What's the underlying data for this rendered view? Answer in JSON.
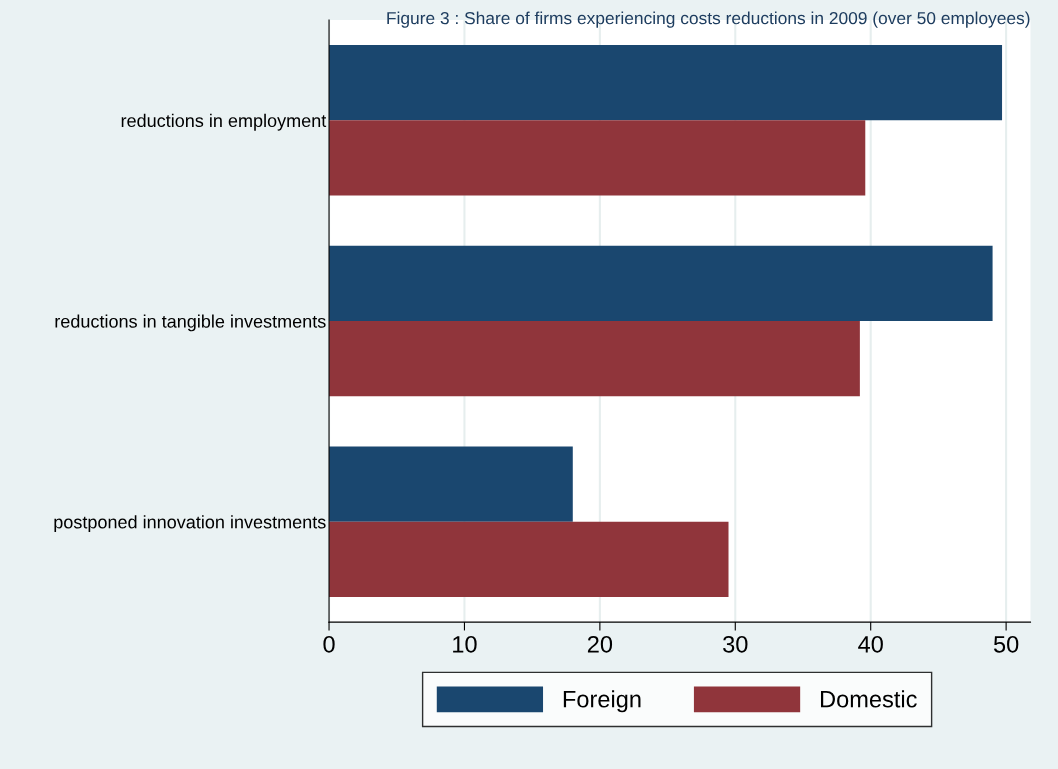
{
  "chart_data": {
    "type": "bar",
    "orientation": "horizontal",
    "title": "Figure 3 : Share of firms experiencing costs reductions in 2009 (over 50 employees)",
    "categories": [
      "reductions in employment",
      "reductions in tangible investments",
      "postponed innovation investments"
    ],
    "series": [
      {
        "name": "Foreign",
        "color": "#1a476f",
        "values": [
          49.7,
          49.0,
          18.0
        ]
      },
      {
        "name": "Domestic",
        "color": "#90353b",
        "values": [
          39.6,
          39.2,
          29.5
        ]
      }
    ],
    "xlim": [
      0,
      51.8
    ],
    "xticks": [
      0,
      10,
      20,
      30,
      40,
      50
    ],
    "grid": "x",
    "legend": "bottom"
  }
}
